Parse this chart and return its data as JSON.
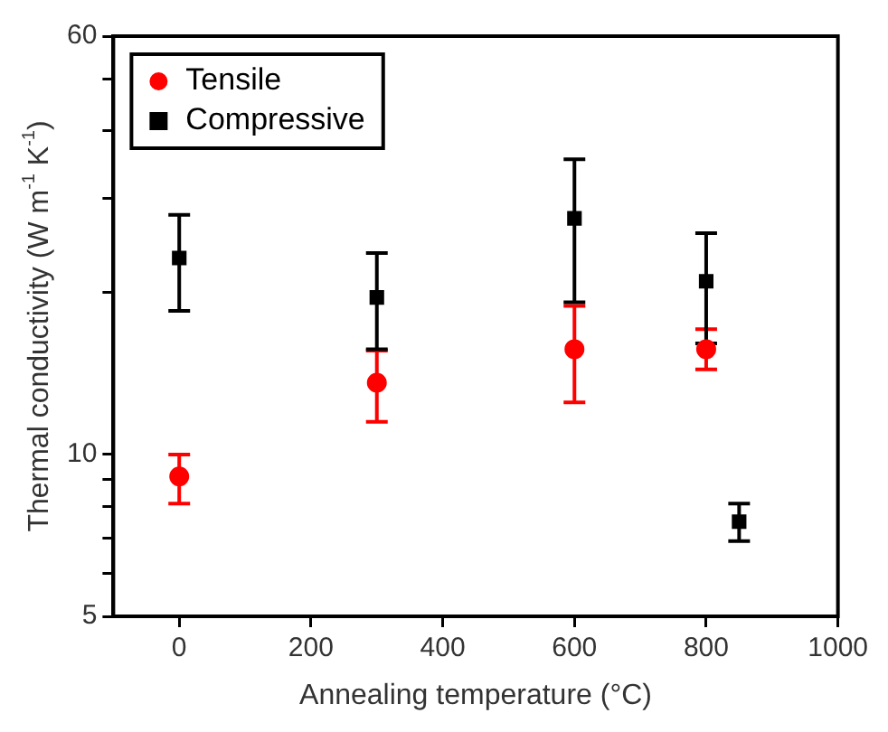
{
  "chart_data": {
    "type": "scatter",
    "xlabel": "Annealing temperature (°C)",
    "ylabel": "Thermal conductivity (W m$^{-1}$ K$^{-1}$)",
    "xlim": [
      -100,
      1000
    ],
    "xticks": [
      0,
      200,
      400,
      600,
      800,
      1000
    ],
    "ylim": [
      5,
      60
    ],
    "yticks": [
      5,
      {
        "value": 6,
        "label": null
      },
      {
        "value": 7,
        "label": null
      },
      {
        "value": 8,
        "label": null
      },
      {
        "value": 9,
        "label": null
      },
      10,
      {
        "value": 20,
        "label": null
      },
      {
        "value": 30,
        "label": null
      },
      {
        "value": 40,
        "label": null
      },
      {
        "value": 50,
        "label": null
      },
      60
    ],
    "log": "y",
    "grid": false,
    "legend": "top left",
    "series": [
      {
        "name": "Tensile",
        "color": "#ff0000",
        "marker": "circle",
        "x": [
          0,
          300,
          600,
          800
        ],
        "values": [
          9.1,
          13.6,
          15.7,
          15.7
        ],
        "errors": [
          [
            8.1,
            10.0
          ],
          [
            11.5,
            15.6
          ],
          [
            12.5,
            18.9
          ],
          [
            14.4,
            17.1
          ]
        ]
      },
      {
        "name": "Compressive",
        "color": "#000000",
        "marker": "square",
        "x": [
          0,
          300,
          600,
          800,
          850
        ],
        "values": [
          23.2,
          19.6,
          27.5,
          21.0,
          7.5
        ],
        "errors": [
          [
            18.5,
            27.9
          ],
          [
            15.7,
            23.7
          ],
          [
            19.2,
            35.4
          ],
          [
            16.1,
            25.8
          ],
          [
            6.9,
            8.1
          ]
        ]
      }
    ]
  }
}
